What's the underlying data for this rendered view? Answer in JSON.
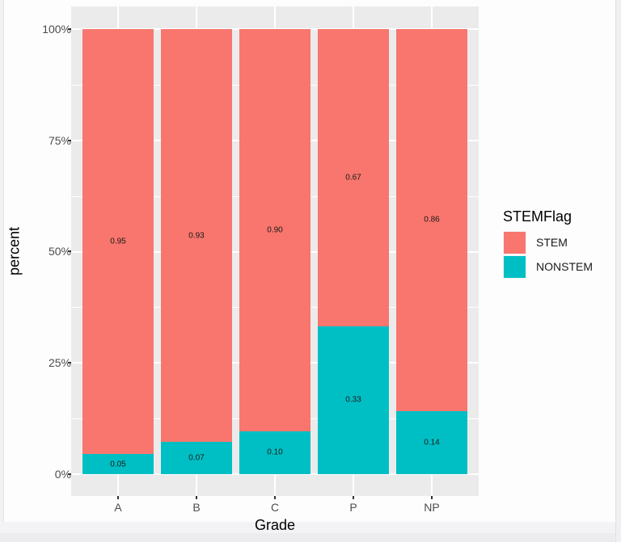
{
  "chart_data": {
    "type": "bar",
    "stacked": true,
    "position": "fill",
    "title": "",
    "xlabel": "Grade",
    "ylabel": "percent",
    "ylim": [
      0,
      1
    ],
    "yticks": [
      "0%",
      "25%",
      "50%",
      "75%",
      "100%"
    ],
    "categories": [
      "A",
      "B",
      "C",
      "P",
      "NP"
    ],
    "series": [
      {
        "name": "STEM",
        "color": "#F8766D",
        "values": [
          0.95,
          0.93,
          0.9,
          0.67,
          0.86
        ],
        "labels": [
          "0.95",
          "0.93",
          "0.90",
          "0.67",
          "0.86"
        ]
      },
      {
        "name": "NONSTEM",
        "color": "#00BFC4",
        "values": [
          0.05,
          0.07,
          0.1,
          0.33,
          0.14
        ],
        "labels": [
          "0.05",
          "0.07",
          "0.10",
          "0.33",
          "0.14"
        ]
      }
    ],
    "legend": {
      "title": "STEMFlag",
      "position": "right",
      "entries": [
        "STEM",
        "NONSTEM"
      ]
    },
    "grid": true
  },
  "axis": {
    "y_title": "percent",
    "x_title": "Grade",
    "y_ticks": [
      "100%",
      "75%",
      "50%",
      "25%",
      "0%"
    ],
    "x_ticks": [
      "A",
      "B",
      "C",
      "P",
      "NP"
    ]
  },
  "legend": {
    "title": "STEMFlag",
    "items": [
      {
        "label": "STEM",
        "color": "#F8766D"
      },
      {
        "label": "NONSTEM",
        "color": "#00BFC4"
      }
    ]
  },
  "bars": [
    {
      "grade": "A",
      "stem_label": "0.95",
      "nonstem_label": "0.05"
    },
    {
      "grade": "B",
      "stem_label": "0.93",
      "nonstem_label": "0.07"
    },
    {
      "grade": "C",
      "stem_label": "0.90",
      "nonstem_label": "0.10"
    },
    {
      "grade": "P",
      "stem_label": "0.67",
      "nonstem_label": "0.33"
    },
    {
      "grade": "NP",
      "stem_label": "0.86",
      "nonstem_label": "0.14"
    }
  ]
}
